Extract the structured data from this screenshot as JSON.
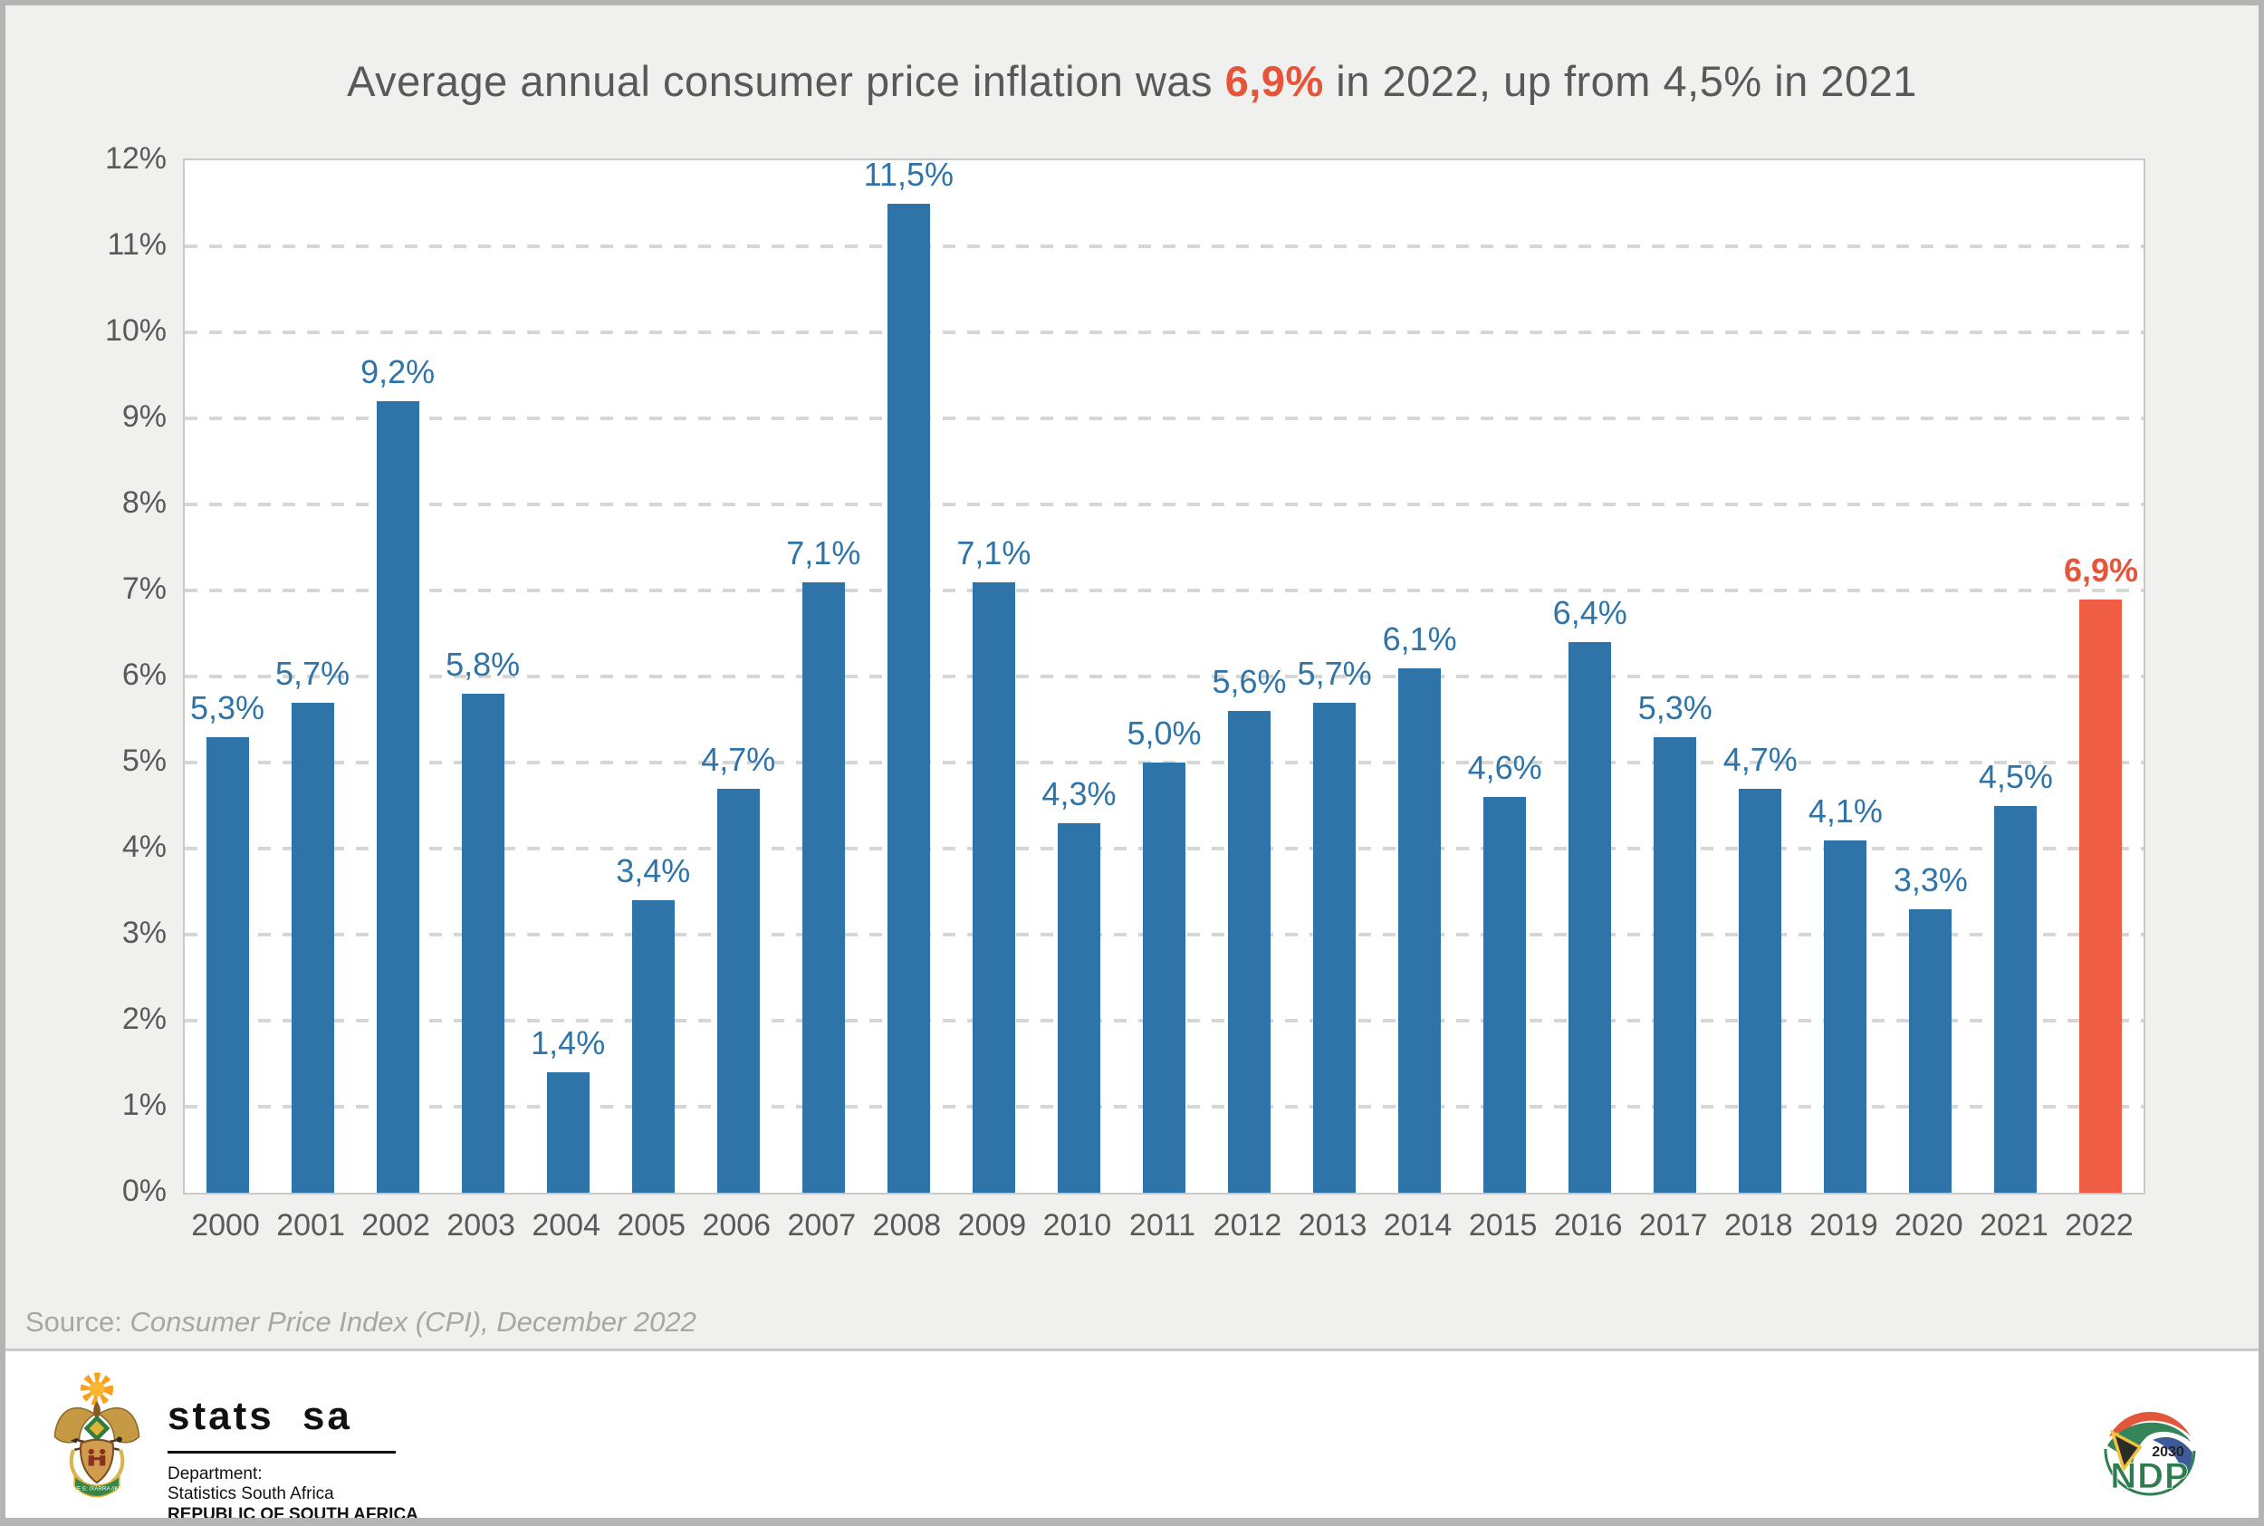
{
  "title": {
    "prefix": "Average annual consumer price inflation was ",
    "highlight": "6,9%",
    "suffix": " in 2022, up from 4,5% in 2021"
  },
  "source": {
    "label": "Source: ",
    "detail": "Consumer Price Index (CPI), December 2022"
  },
  "chart_data": {
    "type": "bar",
    "categories": [
      "2000",
      "2001",
      "2002",
      "2003",
      "2004",
      "2005",
      "2006",
      "2007",
      "2008",
      "2009",
      "2010",
      "2011",
      "2012",
      "2013",
      "2014",
      "2015",
      "2016",
      "2017",
      "2018",
      "2019",
      "2020",
      "2021",
      "2022"
    ],
    "values": [
      5.3,
      5.7,
      9.2,
      5.8,
      1.4,
      3.4,
      4.7,
      7.1,
      11.5,
      7.1,
      4.3,
      5.0,
      5.6,
      5.7,
      6.1,
      4.6,
      6.4,
      5.3,
      4.7,
      4.1,
      3.3,
      4.5,
      6.9
    ],
    "value_labels": [
      "5,3%",
      "5,7%",
      "9,2%",
      "5,8%",
      "1,4%",
      "3,4%",
      "4,7%",
      "7,1%",
      "11,5%",
      "7,1%",
      "4,3%",
      "5,0%",
      "5,6%",
      "5,7%",
      "6,1%",
      "4,6%",
      "6,4%",
      "5,3%",
      "4,7%",
      "4,1%",
      "3,3%",
      "4,5%",
      "6,9%"
    ],
    "title": "Average annual consumer price inflation was 6,9% in 2022, up from 4,5% in 2021",
    "xlabel": "",
    "ylabel": "",
    "ylim": [
      0,
      12
    ],
    "yticks": [
      "0%",
      "1%",
      "2%",
      "3%",
      "4%",
      "5%",
      "6%",
      "7%",
      "8%",
      "9%",
      "10%",
      "11%",
      "12%"
    ],
    "grid": "horizontal-dashed",
    "legend": "none",
    "bar_color": "#2f74a8",
    "highlight_color": "#ee5d44",
    "highlight_index": 22,
    "value_label_color": "#2f74a8",
    "highlight_label_color": "#e6553a"
  },
  "footer": {
    "stats_sa": {
      "brand": "stats sa",
      "dept_line1": "Department:",
      "dept_line2": "Statistics South Africa",
      "dept_line3": "REPUBLIC OF SOUTH AFRICA",
      "motto": "!KE E: /XARRA //KE"
    },
    "ndp": {
      "year": "2030",
      "abbr": "NDP"
    }
  },
  "colors": {
    "background": "#f0f0ee",
    "plot_background": "#ffffff",
    "title_text": "#58595b",
    "accent_orange": "#e6553a",
    "bar_blue": "#2f74a8",
    "grid": "#d6d6d6",
    "source_text": "#a6a6a6",
    "ndp_green": "#2e7d4f"
  }
}
